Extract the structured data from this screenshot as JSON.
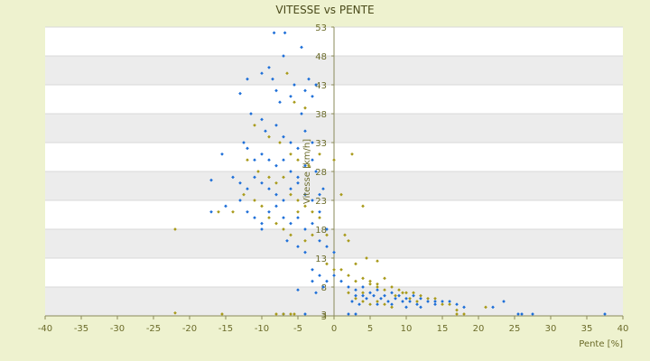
{
  "chart_data": {
    "type": "scatter",
    "title": "VITESSE vs PENTE",
    "xlabel": "Pente [%]",
    "ylabel": "Vitesse [km/h]",
    "xlim": [
      -40,
      40
    ],
    "ylim": [
      3,
      53
    ],
    "x_ticks": [
      "-40",
      "-35",
      "-30",
      "-25",
      "-20",
      "-15",
      "-10",
      "-5",
      "0",
      "5",
      "10",
      "15",
      "20",
      "25",
      "30",
      "35",
      "40"
    ],
    "y_ticks": [
      "3",
      "8",
      "13",
      "18",
      "23",
      "28",
      "33",
      "38",
      "43",
      "48",
      "53"
    ],
    "y_bottom_tick_label": "3",
    "grid": true,
    "legend": "none",
    "colors": {
      "blue": "#1e6fd8",
      "olive": "#a89a1a",
      "band": "#ececec",
      "plot_bg": "#ffffff",
      "page_bg": "#eef2cf",
      "axis": "#8a8a5a"
    },
    "series": [
      {
        "color": "#1e6fd8",
        "points": [
          [
            -8.3,
            52
          ],
          [
            -6.8,
            52
          ],
          [
            -4.5,
            49.5
          ],
          [
            -7,
            48
          ],
          [
            -8.5,
            44
          ],
          [
            -12,
            44
          ],
          [
            -10,
            45
          ],
          [
            -9,
            46
          ],
          [
            -8,
            42
          ],
          [
            -7.5,
            40
          ],
          [
            -6,
            41
          ],
          [
            -5.5,
            43
          ],
          [
            -4,
            42
          ],
          [
            -3.5,
            44
          ],
          [
            -2.5,
            43
          ],
          [
            -3,
            41
          ],
          [
            -13,
            41.5
          ],
          [
            -11.5,
            38
          ],
          [
            -10,
            37
          ],
          [
            -9.5,
            35
          ],
          [
            -8,
            36
          ],
          [
            -7,
            34
          ],
          [
            -6,
            33
          ],
          [
            -5,
            32
          ],
          [
            -4.5,
            38
          ],
          [
            -4,
            35
          ],
          [
            -3,
            33
          ],
          [
            -12.5,
            33
          ],
          [
            -12,
            32
          ],
          [
            -11,
            30
          ],
          [
            -10,
            31
          ],
          [
            -9,
            30
          ],
          [
            -8,
            29
          ],
          [
            -7,
            30
          ],
          [
            -6,
            28
          ],
          [
            -5,
            27
          ],
          [
            -4,
            29
          ],
          [
            -3,
            30
          ],
          [
            -2.5,
            28
          ],
          [
            -15.5,
            31
          ],
          [
            -17,
            26.5
          ],
          [
            -14,
            27
          ],
          [
            -13,
            26
          ],
          [
            -12,
            25
          ],
          [
            -11,
            27
          ],
          [
            -10,
            26
          ],
          [
            -9,
            25
          ],
          [
            -8,
            24
          ],
          [
            -7,
            23
          ],
          [
            -6,
            25
          ],
          [
            -5,
            26
          ],
          [
            -4,
            24
          ],
          [
            -3,
            23
          ],
          [
            -2,
            24
          ],
          [
            -1.5,
            25
          ],
          [
            -17,
            21
          ],
          [
            -15,
            22
          ],
          [
            -13,
            23
          ],
          [
            -12,
            21
          ],
          [
            -11,
            20
          ],
          [
            -10,
            19
          ],
          [
            -9,
            21
          ],
          [
            -8,
            22
          ],
          [
            -7,
            20
          ],
          [
            -6,
            19
          ],
          [
            -5,
            20
          ],
          [
            -4,
            18
          ],
          [
            -3,
            19
          ],
          [
            -2,
            21
          ],
          [
            -1,
            18
          ],
          [
            -10,
            18
          ],
          [
            -6.5,
            16
          ],
          [
            -5,
            15
          ],
          [
            -4,
            14
          ],
          [
            -2,
            16
          ],
          [
            -1,
            15
          ],
          [
            0,
            14
          ],
          [
            -3,
            11
          ],
          [
            -2,
            10
          ],
          [
            -1,
            9
          ],
          [
            -2.5,
            7
          ],
          [
            -3,
            9
          ],
          [
            -1.5,
            8
          ],
          [
            0,
            10
          ],
          [
            -5,
            7.5
          ],
          [
            1,
            9
          ],
          [
            2,
            8
          ],
          [
            3,
            7.5
          ],
          [
            4,
            8
          ],
          [
            5,
            7
          ],
          [
            6,
            7.5
          ],
          [
            7,
            6.5
          ],
          [
            8,
            7
          ],
          [
            9,
            6.5
          ],
          [
            10,
            6
          ],
          [
            11,
            6.5
          ],
          [
            12,
            6
          ],
          [
            13,
            5.5
          ],
          [
            14,
            5.5
          ],
          [
            15,
            5.5
          ],
          [
            16,
            5.5
          ],
          [
            17,
            5
          ],
          [
            4.5,
            6
          ],
          [
            5.5,
            6.5
          ],
          [
            6.5,
            6
          ],
          [
            7.5,
            5.5
          ],
          [
            8.5,
            6
          ],
          [
            9.5,
            5.5
          ],
          [
            10.5,
            5.5
          ],
          [
            11.5,
            5
          ],
          [
            3,
            6.5
          ],
          [
            2.5,
            5.5
          ],
          [
            3.5,
            5
          ],
          [
            4,
            6.5
          ],
          [
            6,
            5
          ],
          [
            8,
            5
          ],
          [
            10,
            4.5
          ],
          [
            12,
            4.5
          ],
          [
            14,
            5
          ],
          [
            18,
            4.5
          ],
          [
            22,
            4.5
          ],
          [
            23.5,
            5.5
          ],
          [
            25.5,
            2
          ],
          [
            26,
            3
          ],
          [
            27.5,
            2
          ],
          [
            37.5,
            2.5
          ],
          [
            -7,
            1.5
          ],
          [
            -4,
            2
          ],
          [
            3,
            2
          ],
          [
            2,
            1.5
          ]
        ]
      },
      {
        "color": "#a89a1a",
        "points": [
          [
            -6.5,
            45
          ],
          [
            -5.5,
            40
          ],
          [
            -4,
            39
          ],
          [
            -11,
            36
          ],
          [
            -9,
            34
          ],
          [
            -7.5,
            33
          ],
          [
            -6,
            31
          ],
          [
            -5,
            30
          ],
          [
            -3.5,
            29
          ],
          [
            -12,
            30
          ],
          [
            -10.5,
            28
          ],
          [
            -9,
            27
          ],
          [
            -8,
            26
          ],
          [
            -7,
            27
          ],
          [
            -6,
            24
          ],
          [
            -5,
            23
          ],
          [
            -4,
            22
          ],
          [
            -3,
            21
          ],
          [
            -2,
            20
          ],
          [
            -14,
            21
          ],
          [
            -12.5,
            24
          ],
          [
            -11,
            23
          ],
          [
            -10,
            22
          ],
          [
            -9,
            20
          ],
          [
            -8,
            19
          ],
          [
            -7,
            18
          ],
          [
            -6,
            17
          ],
          [
            -5,
            21
          ],
          [
            -4,
            16
          ],
          [
            -3,
            17
          ],
          [
            -1,
            17
          ],
          [
            -22,
            18
          ],
          [
            -16,
            21
          ],
          [
            -2,
            31
          ],
          [
            2.5,
            31
          ],
          [
            0,
            30
          ],
          [
            1,
            24
          ],
          [
            4,
            22
          ],
          [
            1.5,
            17
          ],
          [
            2,
            16
          ],
          [
            3,
            12
          ],
          [
            4.5,
            13
          ],
          [
            6,
            12.5
          ],
          [
            -1,
            12
          ],
          [
            0,
            11
          ],
          [
            1,
            11
          ],
          [
            2,
            10
          ],
          [
            3,
            9
          ],
          [
            4,
            9.5
          ],
          [
            5,
            9
          ],
          [
            6,
            8.5
          ],
          [
            7,
            9.5
          ],
          [
            8,
            8
          ],
          [
            9,
            7.5
          ],
          [
            10,
            7
          ],
          [
            11,
            7
          ],
          [
            12,
            6.5
          ],
          [
            13,
            6
          ],
          [
            14,
            6
          ],
          [
            15,
            5
          ],
          [
            16,
            5
          ],
          [
            17,
            4
          ],
          [
            18,
            3
          ],
          [
            4,
            7
          ],
          [
            5,
            8.5
          ],
          [
            6,
            8
          ],
          [
            7,
            7.5
          ],
          [
            8.5,
            6.5
          ],
          [
            9.5,
            7
          ],
          [
            10.5,
            6
          ],
          [
            11.5,
            5.5
          ],
          [
            2,
            7
          ],
          [
            3,
            6
          ],
          [
            4,
            5.5
          ],
          [
            5,
            5
          ],
          [
            6,
            5.5
          ],
          [
            7,
            5
          ],
          [
            8,
            4.5
          ],
          [
            21,
            4.5
          ],
          [
            -22,
            3.5
          ],
          [
            -15.5,
            2.5
          ],
          [
            -8,
            2.5
          ],
          [
            -5.5,
            2.5
          ],
          [
            -7,
            2
          ],
          [
            -6,
            2.5
          ],
          [
            17,
            2
          ]
        ]
      }
    ]
  }
}
